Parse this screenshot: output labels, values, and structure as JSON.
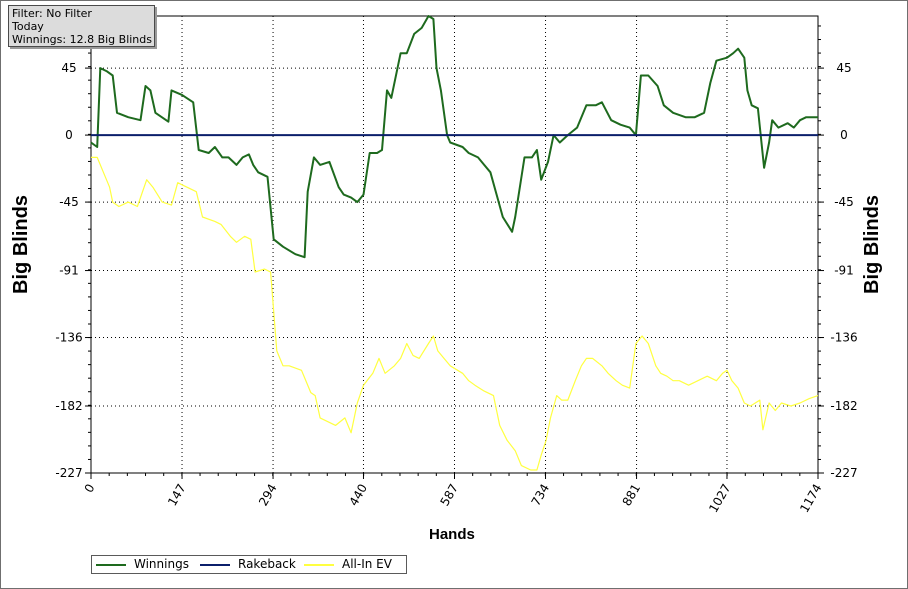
{
  "info_box": {
    "filter": "Filter: No Filter",
    "period": "Today",
    "winnings": "Winnings: 12.8 Big Blinds"
  },
  "legend": {
    "items": [
      {
        "label": "Winnings",
        "color": "#1e6a1e"
      },
      {
        "label": "Rakeback",
        "color": "#0b1f6b"
      },
      {
        "label": "All-In EV",
        "color": "#ffff40"
      }
    ]
  },
  "chart_data": {
    "type": "line",
    "title": "",
    "xlabel": "Hands",
    "ylabel": "Big Blinds",
    "xlim": [
      0,
      1174
    ],
    "ylim": [
      -227,
      80
    ],
    "x_ticks": [
      0,
      147,
      294,
      440,
      587,
      734,
      881,
      1027,
      1174
    ],
    "y_ticks": [
      45,
      0,
      -45,
      -91,
      -136,
      -182,
      -227
    ],
    "grid": true,
    "legend_position": "bottom-left",
    "series": [
      {
        "name": "Winnings",
        "color": "#1e6a1e",
        "points": [
          [
            0,
            -5
          ],
          [
            10,
            -8
          ],
          [
            15,
            45
          ],
          [
            25,
            43
          ],
          [
            35,
            40
          ],
          [
            42,
            15
          ],
          [
            60,
            12
          ],
          [
            80,
            10
          ],
          [
            88,
            33
          ],
          [
            96,
            30
          ],
          [
            104,
            15
          ],
          [
            125,
            9
          ],
          [
            130,
            30
          ],
          [
            147,
            27
          ],
          [
            165,
            22
          ],
          [
            174,
            -10
          ],
          [
            190,
            -12
          ],
          [
            200,
            -8
          ],
          [
            212,
            -15
          ],
          [
            222,
            -15
          ],
          [
            235,
            -20
          ],
          [
            245,
            -15
          ],
          [
            255,
            -13
          ],
          [
            262,
            -20
          ],
          [
            270,
            -25
          ],
          [
            285,
            -28
          ],
          [
            295,
            -70
          ],
          [
            310,
            -75
          ],
          [
            330,
            -80
          ],
          [
            345,
            -82
          ],
          [
            350,
            -38
          ],
          [
            360,
            -15
          ],
          [
            370,
            -20
          ],
          [
            385,
            -18
          ],
          [
            400,
            -35
          ],
          [
            408,
            -40
          ],
          [
            420,
            -42
          ],
          [
            430,
            -45
          ],
          [
            440,
            -40
          ],
          [
            450,
            -12
          ],
          [
            462,
            -12
          ],
          [
            470,
            -10
          ],
          [
            478,
            30
          ],
          [
            485,
            25
          ],
          [
            500,
            55
          ],
          [
            510,
            55
          ],
          [
            522,
            68
          ],
          [
            534,
            72
          ],
          [
            545,
            80
          ],
          [
            553,
            78
          ],
          [
            558,
            45
          ],
          [
            565,
            30
          ],
          [
            575,
            0
          ],
          [
            580,
            -5
          ],
          [
            600,
            -8
          ],
          [
            610,
            -12
          ],
          [
            625,
            -15
          ],
          [
            635,
            -20
          ],
          [
            645,
            -25
          ],
          [
            655,
            -40
          ],
          [
            665,
            -55
          ],
          [
            680,
            -65
          ],
          [
            685,
            -55
          ],
          [
            700,
            -15
          ],
          [
            712,
            -15
          ],
          [
            720,
            -10
          ],
          [
            727,
            -30
          ],
          [
            738,
            -18
          ],
          [
            747,
            0
          ],
          [
            757,
            -5
          ],
          [
            770,
            0
          ],
          [
            785,
            5
          ],
          [
            800,
            20
          ],
          [
            815,
            20
          ],
          [
            825,
            22
          ],
          [
            840,
            10
          ],
          [
            855,
            7
          ],
          [
            870,
            5
          ],
          [
            880,
            0
          ],
          [
            888,
            40
          ],
          [
            900,
            40
          ],
          [
            915,
            33
          ],
          [
            925,
            20
          ],
          [
            940,
            15
          ],
          [
            960,
            12
          ],
          [
            975,
            12
          ],
          [
            990,
            15
          ],
          [
            1000,
            35
          ],
          [
            1010,
            50
          ],
          [
            1027,
            52
          ],
          [
            1037,
            55
          ],
          [
            1045,
            58
          ],
          [
            1055,
            52
          ],
          [
            1060,
            30
          ],
          [
            1067,
            20
          ],
          [
            1077,
            18
          ],
          [
            1087,
            -22
          ],
          [
            1095,
            -5
          ],
          [
            1100,
            10
          ],
          [
            1110,
            5
          ],
          [
            1125,
            8
          ],
          [
            1135,
            5
          ],
          [
            1145,
            10
          ],
          [
            1155,
            12
          ],
          [
            1174,
            12
          ]
        ]
      },
      {
        "name": "Rakeback",
        "color": "#0b1f6b",
        "points": [
          [
            0,
            0
          ],
          [
            1174,
            0
          ]
        ]
      },
      {
        "name": "All-In EV",
        "color": "#ffff40",
        "points": [
          [
            0,
            -15
          ],
          [
            10,
            -15
          ],
          [
            20,
            -25
          ],
          [
            30,
            -35
          ],
          [
            35,
            -45
          ],
          [
            45,
            -48
          ],
          [
            60,
            -45
          ],
          [
            75,
            -48
          ],
          [
            90,
            -30
          ],
          [
            100,
            -35
          ],
          [
            115,
            -45
          ],
          [
            130,
            -47
          ],
          [
            140,
            -32
          ],
          [
            155,
            -35
          ],
          [
            170,
            -38
          ],
          [
            180,
            -55
          ],
          [
            200,
            -58
          ],
          [
            210,
            -60
          ],
          [
            225,
            -68
          ],
          [
            235,
            -72
          ],
          [
            248,
            -68
          ],
          [
            258,
            -70
          ],
          [
            265,
            -92
          ],
          [
            280,
            -90
          ],
          [
            290,
            -92
          ],
          [
            300,
            -145
          ],
          [
            310,
            -155
          ],
          [
            320,
            -155
          ],
          [
            340,
            -158
          ],
          [
            355,
            -173
          ],
          [
            362,
            -175
          ],
          [
            370,
            -190
          ],
          [
            380,
            -192
          ],
          [
            395,
            -195
          ],
          [
            410,
            -190
          ],
          [
            420,
            -200
          ],
          [
            430,
            -180
          ],
          [
            440,
            -168
          ],
          [
            455,
            -160
          ],
          [
            465,
            -150
          ],
          [
            475,
            -160
          ],
          [
            490,
            -155
          ],
          [
            500,
            -150
          ],
          [
            510,
            -140
          ],
          [
            520,
            -148
          ],
          [
            530,
            -150
          ],
          [
            545,
            -140
          ],
          [
            553,
            -135
          ],
          [
            560,
            -145
          ],
          [
            570,
            -150
          ],
          [
            580,
            -155
          ],
          [
            600,
            -160
          ],
          [
            610,
            -165
          ],
          [
            620,
            -168
          ],
          [
            635,
            -172
          ],
          [
            650,
            -175
          ],
          [
            660,
            -195
          ],
          [
            672,
            -205
          ],
          [
            685,
            -212
          ],
          [
            695,
            -222
          ],
          [
            710,
            -225
          ],
          [
            720,
            -225
          ],
          [
            727,
            -215
          ],
          [
            735,
            -205
          ],
          [
            742,
            -190
          ],
          [
            752,
            -175
          ],
          [
            760,
            -178
          ],
          [
            770,
            -178
          ],
          [
            782,
            -165
          ],
          [
            792,
            -155
          ],
          [
            800,
            -150
          ],
          [
            810,
            -150
          ],
          [
            825,
            -155
          ],
          [
            835,
            -160
          ],
          [
            848,
            -165
          ],
          [
            858,
            -168
          ],
          [
            870,
            -170
          ],
          [
            880,
            -140
          ],
          [
            890,
            -135
          ],
          [
            900,
            -140
          ],
          [
            912,
            -155
          ],
          [
            920,
            -160
          ],
          [
            930,
            -162
          ],
          [
            940,
            -165
          ],
          [
            950,
            -165
          ],
          [
            965,
            -168
          ],
          [
            980,
            -165
          ],
          [
            995,
            -162
          ],
          [
            1010,
            -165
          ],
          [
            1020,
            -160
          ],
          [
            1027,
            -158
          ],
          [
            1035,
            -165
          ],
          [
            1045,
            -170
          ],
          [
            1055,
            -180
          ],
          [
            1065,
            -182
          ],
          [
            1080,
            -178
          ],
          [
            1085,
            -198
          ],
          [
            1095,
            -180
          ],
          [
            1105,
            -185
          ],
          [
            1115,
            -180
          ],
          [
            1130,
            -182
          ],
          [
            1145,
            -180
          ],
          [
            1160,
            -177
          ],
          [
            1174,
            -175
          ]
        ]
      }
    ]
  }
}
